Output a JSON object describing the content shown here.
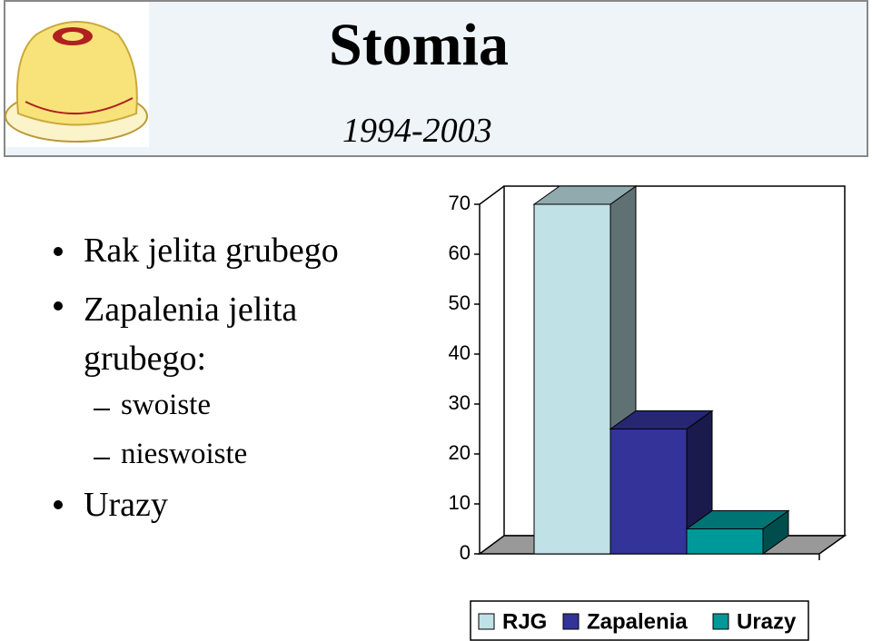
{
  "slide": {
    "title": "Stomia",
    "subtitle": "1994-2003",
    "bullets": [
      "Rak jelita grubego",
      "Zapalenia jelita grubego:",
      "Urazy"
    ],
    "subbullets": [
      "swoiste",
      "nieswoiste"
    ]
  },
  "chart_data": {
    "type": "bar3d",
    "categories": [
      null
    ],
    "series": [
      {
        "name": "RJG",
        "color": "#c0e2e6",
        "values": [
          70
        ]
      },
      {
        "name": "Zapalenia",
        "color": "#333399",
        "values": [
          25
        ]
      },
      {
        "name": "Urazy",
        "color": "#009999",
        "values": [
          5
        ]
      }
    ],
    "ylim": [
      0,
      70
    ],
    "yticks": [
      0,
      10,
      20,
      30,
      40,
      50,
      60,
      70
    ],
    "grid": false,
    "legend": "bottom"
  }
}
